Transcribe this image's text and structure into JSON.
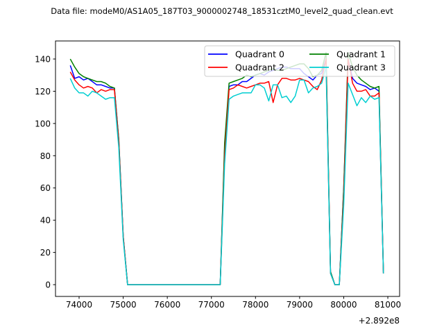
{
  "chart_data": {
    "type": "line",
    "title": "Data file: modeM0/AS1A05_187T03_9000002748_18531cztM0_level2_quad_clean.evt",
    "xlabel": "",
    "ylabel": "",
    "x_offset_label": "+2.892e8",
    "xlim": [
      73465,
      81267
    ],
    "ylim": [
      -7.3,
      151.2
    ],
    "xticks": [
      74000,
      75000,
      76000,
      77000,
      78000,
      79000,
      80000,
      81000
    ],
    "yticks": [
      0,
      20,
      40,
      60,
      80,
      100,
      120,
      140
    ],
    "grid": false,
    "legend": {
      "placement": "top-right",
      "columns": 2
    },
    "x": [
      73800,
      73900,
      74000,
      74100,
      74200,
      74300,
      74400,
      74500,
      74600,
      74700,
      74800,
      74900,
      75000,
      75100,
      75200,
      75300,
      75400,
      75500,
      75600,
      75700,
      75800,
      75900,
      76000,
      76100,
      76200,
      76300,
      76400,
      76500,
      76600,
      76700,
      76800,
      76900,
      77000,
      77100,
      77200,
      77300,
      77400,
      77500,
      77600,
      77700,
      77800,
      77900,
      78000,
      78100,
      78200,
      78300,
      78400,
      78500,
      78600,
      78700,
      78800,
      78900,
      79000,
      79100,
      79200,
      79300,
      79400,
      79500,
      79600,
      79700,
      79800,
      79900,
      80000,
      80100,
      80200,
      80300,
      80400,
      80500,
      80600,
      80700,
      80800,
      80900
    ],
    "series": [
      {
        "name": "Quadrant 0",
        "color": "#0000ff",
        "values": [
          136,
          128,
          129,
          127,
          128,
          126,
          124,
          124,
          123,
          122,
          122,
          90,
          30,
          0,
          0,
          0,
          0,
          0,
          0,
          0,
          0,
          0,
          0,
          0,
          0,
          0,
          0,
          0,
          0,
          0,
          0,
          0,
          0,
          0,
          0,
          85,
          123,
          124,
          124,
          126,
          126,
          128,
          130,
          131,
          130,
          132,
          133,
          134,
          135,
          135,
          134,
          134,
          134,
          131,
          129,
          127,
          130,
          131,
          140,
          8,
          0,
          0,
          60,
          140,
          128,
          125,
          124,
          123,
          121,
          122,
          120,
          7
        ]
      },
      {
        "name": "Quadrant 1",
        "color": "#008000",
        "values": [
          140,
          135,
          131,
          129,
          128,
          127,
          126,
          126,
          125,
          123,
          122,
          90,
          30,
          0,
          0,
          0,
          0,
          0,
          0,
          0,
          0,
          0,
          0,
          0,
          0,
          0,
          0,
          0,
          0,
          0,
          0,
          0,
          0,
          0,
          0,
          88,
          125,
          126,
          127,
          128,
          130,
          129,
          130,
          131,
          132,
          133,
          134,
          133,
          133,
          134,
          135,
          136,
          137,
          137,
          134,
          129,
          130,
          133,
          144,
          8,
          0,
          0,
          60,
          144,
          135,
          130,
          127,
          125,
          123,
          122,
          123,
          7
        ]
      },
      {
        "name": "Quadrant 2",
        "color": "#ff0000",
        "values": [
          132,
          127,
          124,
          122,
          123,
          122,
          119,
          121,
          120,
          121,
          121,
          88,
          30,
          0,
          0,
          0,
          0,
          0,
          0,
          0,
          0,
          0,
          0,
          0,
          0,
          0,
          0,
          0,
          0,
          0,
          0,
          0,
          0,
          0,
          0,
          80,
          121,
          122,
          124,
          123,
          122,
          123,
          124,
          125,
          125,
          126,
          113,
          124,
          128,
          128,
          127,
          127,
          128,
          127,
          126,
          123,
          121,
          127,
          140,
          7,
          0,
          0,
          55,
          140,
          125,
          120,
          120,
          121,
          117,
          117,
          119,
          7
        ]
      },
      {
        "name": "Quadrant 3",
        "color": "#00ced1",
        "values": [
          128,
          122,
          119,
          119,
          117,
          120,
          119,
          117,
          115,
          116,
          116,
          85,
          28,
          0,
          0,
          0,
          0,
          0,
          0,
          0,
          0,
          0,
          0,
          0,
          0,
          0,
          0,
          0,
          0,
          0,
          0,
          0,
          0,
          0,
          0,
          75,
          115,
          117,
          118,
          119,
          119,
          119,
          124,
          124,
          122,
          114,
          124,
          124,
          116,
          117,
          113,
          117,
          127,
          127,
          119,
          122,
          123,
          125,
          135,
          7,
          0,
          0,
          50,
          125,
          118,
          111,
          116,
          113,
          117,
          115,
          116,
          7
        ]
      }
    ]
  }
}
